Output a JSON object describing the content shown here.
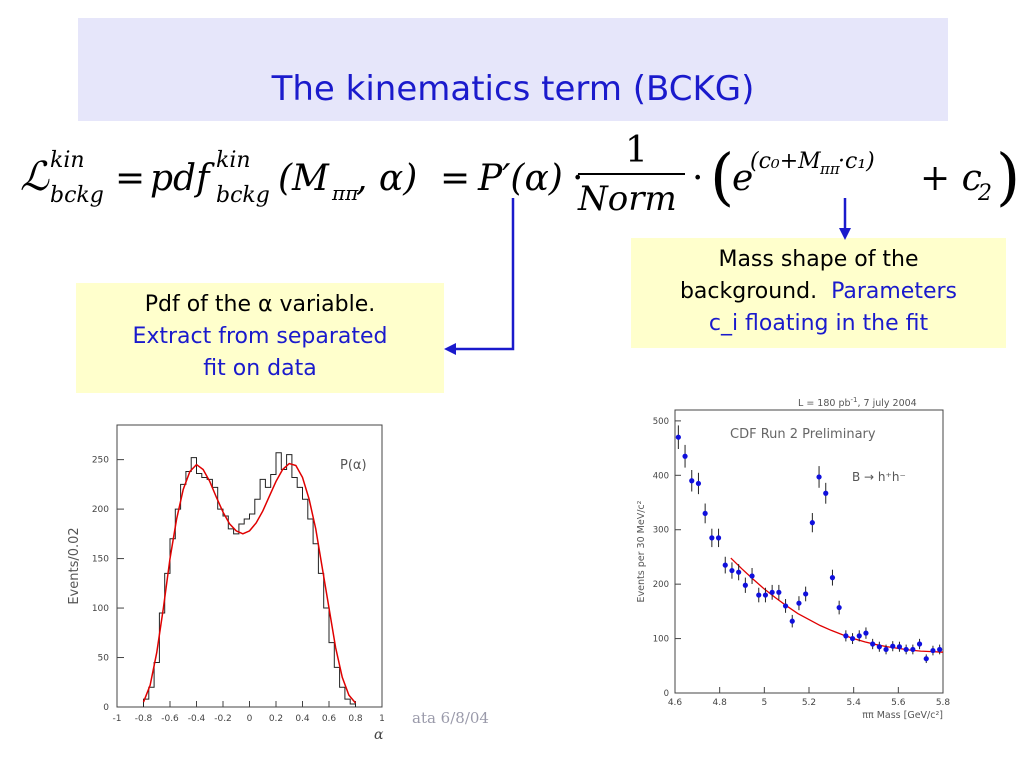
{
  "slide": {
    "title": "The kinematics term (BCKG)",
    "footer": "ata 6/8/04"
  },
  "formula": {
    "lhs": "ℒ",
    "lhs_sup": "kin",
    "lhs_sub": "bckg",
    "eq1": "=",
    "pdf": "pdf",
    "pdf_sup": "kin",
    "pdf_sub": "bckg",
    "args_open": "(M",
    "args_sub": "ππ",
    "args_close": ", α)",
    "eq2": "=",
    "p_prime": "P′(α)",
    "dot1": "·",
    "numerator": "1",
    "denominator": "Norm",
    "dot2": "·",
    "exp_base": "e",
    "exp_power": "(c₀+M",
    "exp_power_sub": "ππ",
    "exp_power_end": "·c₁)",
    "plus_term": "+ c",
    "plus_sub": "2"
  },
  "annotations": {
    "left": {
      "line1": "Pdf of the α variable.",
      "line2": "Extract from separated",
      "line3": "fit  on data"
    },
    "right": {
      "line1": "Mass shape of the",
      "line2a": "background.",
      "line2b": "Parameters",
      "line3": "c_i floating in the fit"
    }
  },
  "colors": {
    "accent_blue": "#1a1acc",
    "banner": "#e6e6fa",
    "note_bg": "#ffffcc",
    "fit_red": "#e00000",
    "point_blue": "#1010dd"
  },
  "chart_data": [
    {
      "type": "line",
      "ylabel": "Events/0.02",
      "xlabel": "α",
      "legend": "P(α)",
      "xlim": [
        -1,
        1
      ],
      "ylim": [
        0,
        285
      ],
      "xticks": [
        "-1",
        "-0.8",
        "-0.6",
        "-0.4",
        "-0.2",
        "0",
        "0.2",
        "0.4",
        "0.6",
        "0.8",
        "1"
      ],
      "yticks": [
        "0",
        "50",
        "100",
        "150",
        "200",
        "250"
      ],
      "series": [
        {
          "style": "histogram",
          "bin_width": 0.04,
          "x": [
            -0.78,
            -0.74,
            -0.7,
            -0.66,
            -0.62,
            -0.58,
            -0.54,
            -0.5,
            -0.46,
            -0.42,
            -0.38,
            -0.34,
            -0.3,
            -0.26,
            -0.22,
            -0.18,
            -0.14,
            -0.1,
            -0.06,
            -0.02,
            0.02,
            0.06,
            0.1,
            0.14,
            0.18,
            0.22,
            0.26,
            0.3,
            0.34,
            0.38,
            0.42,
            0.46,
            0.5,
            0.54,
            0.58,
            0.62,
            0.66,
            0.7,
            0.74,
            0.78
          ],
          "values": [
            8,
            20,
            45,
            95,
            135,
            170,
            200,
            225,
            238,
            252,
            236,
            232,
            230,
            222,
            200,
            193,
            180,
            175,
            185,
            190,
            195,
            210,
            230,
            222,
            235,
            257,
            240,
            255,
            232,
            222,
            210,
            190,
            165,
            135,
            100,
            65,
            40,
            20,
            8,
            3
          ]
        },
        {
          "style": "fit-curve",
          "x": [
            -0.8,
            -0.75,
            -0.7,
            -0.65,
            -0.6,
            -0.55,
            -0.5,
            -0.45,
            -0.4,
            -0.35,
            -0.3,
            -0.25,
            -0.2,
            -0.15,
            -0.1,
            -0.05,
            0,
            0.05,
            0.1,
            0.15,
            0.2,
            0.25,
            0.3,
            0.35,
            0.4,
            0.45,
            0.5,
            0.55,
            0.6,
            0.65,
            0.7,
            0.75,
            0.8
          ],
          "values": [
            5,
            22,
            55,
            100,
            150,
            190,
            220,
            238,
            245,
            240,
            228,
            212,
            197,
            185,
            178,
            175,
            178,
            186,
            198,
            213,
            228,
            240,
            246,
            244,
            232,
            210,
            180,
            140,
            100,
            60,
            30,
            12,
            4
          ]
        }
      ]
    },
    {
      "type": "scatter",
      "title": "CDF Run 2 Preliminary",
      "top_label": "L = 180 pb",
      "top_label_sup": "-1",
      "top_label_end": ", 7 july 2004",
      "legend": "B → h⁺h⁻",
      "ylabel": "Events per 30 MeV/c²",
      "xlabel": "ππ Mass [GeV/c²]",
      "xlim": [
        4.6,
        5.8
      ],
      "ylim": [
        0,
        520
      ],
      "xticks": [
        "4.6",
        "4.8",
        "5",
        "5.2",
        "5.4",
        "5.6",
        "5.8"
      ],
      "yticks": [
        "0",
        "100",
        "200",
        "300",
        "400",
        "500"
      ],
      "series": [
        {
          "style": "points",
          "x": [
            4.615,
            4.645,
            4.675,
            4.705,
            4.735,
            4.765,
            4.795,
            4.825,
            4.855,
            4.885,
            4.915,
            4.945,
            4.975,
            5.005,
            5.035,
            5.065,
            5.095,
            5.125,
            5.155,
            5.185,
            5.215,
            5.245,
            5.275,
            5.305,
            5.335,
            5.365,
            5.395,
            5.425,
            5.455,
            5.485,
            5.515,
            5.545,
            5.575,
            5.605,
            5.635,
            5.665,
            5.695,
            5.725,
            5.755,
            5.785
          ],
          "values": [
            470,
            435,
            390,
            385,
            330,
            285,
            285,
            235,
            225,
            222,
            198,
            215,
            180,
            180,
            185,
            185,
            160,
            132,
            165,
            182,
            313,
            397,
            367,
            212,
            157,
            105,
            100,
            105,
            110,
            90,
            85,
            80,
            86,
            85,
            80,
            80,
            90,
            63,
            78,
            80
          ]
        },
        {
          "style": "fit-curve",
          "x": [
            4.85,
            4.9,
            4.95,
            5.0,
            5.05,
            5.1,
            5.15,
            5.2,
            5.25,
            5.3,
            5.35,
            5.4,
            5.45,
            5.5,
            5.55,
            5.6,
            5.65,
            5.7,
            5.75,
            5.8
          ],
          "values": [
            248,
            228,
            209,
            191,
            175,
            160,
            146,
            135,
            124,
            115,
            107,
            100,
            94,
            89,
            85,
            82,
            79,
            77,
            76,
            75
          ]
        }
      ]
    }
  ]
}
